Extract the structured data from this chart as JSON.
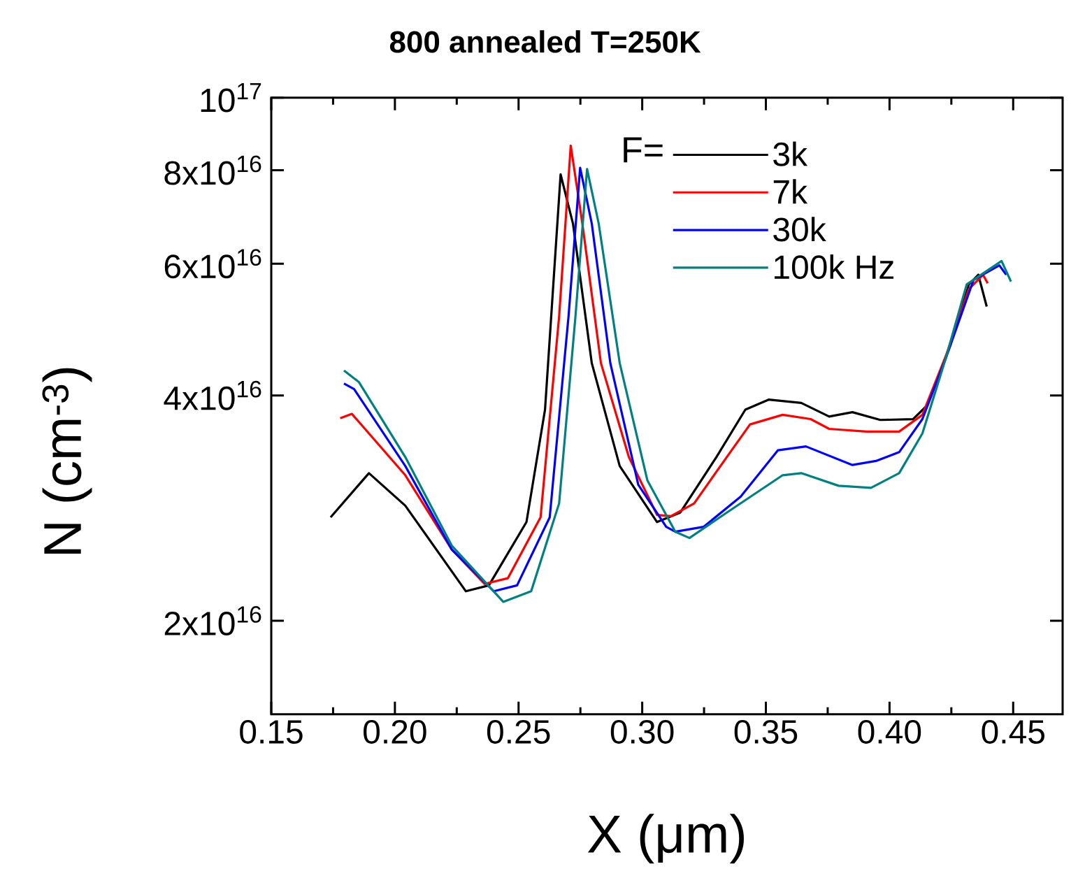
{
  "chart_data": {
    "type": "line",
    "title": "800 annealed  T=250K",
    "xlabel": "X (μm)",
    "ylabel": "N (cm$^{-3}$)",
    "legend_title": "F=",
    "legend": "top right",
    "log": "y",
    "xlim": [
      0.15,
      0.47
    ],
    "ylim": [
      1.5e+16,
      1e+17
    ],
    "xticks": [
      {
        "value": 0.15,
        "label": "0.15"
      },
      {
        "value": 0.2,
        "label": "0.20"
      },
      {
        "value": 0.25,
        "label": "0.25"
      },
      {
        "value": 0.3,
        "label": "0.30"
      },
      {
        "value": 0.35,
        "label": "0.35"
      },
      {
        "value": 0.4,
        "label": "0.40"
      },
      {
        "value": 0.45,
        "label": "0.45"
      }
    ],
    "yticks": [
      {
        "value": 2e+16,
        "label": "2x10$^{16}$"
      },
      {
        "value": 4e+16,
        "label": "4x10$^{16}$"
      },
      {
        "value": 6e+16,
        "label": "6x10$^{16}$"
      },
      {
        "value": 8e+16,
        "label": "8x10$^{16}$"
      },
      {
        "value": 1e+17,
        "label": "10$^{17}$"
      }
    ],
    "series": [
      {
        "name": "3k",
        "color": "#000000",
        "x": [
          0.174,
          0.1895,
          0.2042,
          0.2287,
          0.238,
          0.2532,
          0.2607,
          0.267,
          0.272,
          0.2796,
          0.2909,
          0.306,
          0.3154,
          0.33,
          0.3417,
          0.3511,
          0.3643,
          0.3756,
          0.385,
          0.3963,
          0.4095,
          0.4152,
          0.4246,
          0.4321,
          0.4359,
          0.4393
        ],
        "values": [
          2.75e+16,
          3.15e+16,
          2.85e+16,
          2.19e+16,
          2.23e+16,
          2.71e+16,
          3.83e+16,
          7.9e+16,
          6.79e+16,
          4.42e+16,
          3.22e+16,
          2.71e+16,
          2.79e+16,
          3.31e+16,
          3.83e+16,
          3.95e+16,
          3.91e+16,
          3.75e+16,
          3.8e+16,
          3.71e+16,
          3.72e+16,
          3.88e+16,
          4.67e+16,
          5.63e+16,
          5.8e+16,
          5.26e+16
        ]
      },
      {
        "name": "7k",
        "color": "#ff0000",
        "x": [
          0.1779,
          0.1826,
          0.2042,
          0.223,
          0.2363,
          0.2457,
          0.2589,
          0.2664,
          0.2711,
          0.2758,
          0.2833,
          0.2946,
          0.306,
          0.3116,
          0.321,
          0.3342,
          0.3436,
          0.3568,
          0.3681,
          0.3756,
          0.3907,
          0.4039,
          0.4133,
          0.4227,
          0.4321,
          0.4378,
          0.4397
        ],
        "values": [
          3.73e+16,
          3.78e+16,
          3.13e+16,
          2.49e+16,
          2.24e+16,
          2.28e+16,
          2.75e+16,
          5.1e+16,
          8.63e+16,
          6.79e+16,
          4.42e+16,
          3.31e+16,
          2.77e+16,
          2.76e+16,
          2.87e+16,
          3.31e+16,
          3.66e+16,
          3.77e+16,
          3.72e+16,
          3.61e+16,
          3.58e+16,
          3.58e+16,
          3.77e+16,
          4.51e+16,
          5.55e+16,
          5.8e+16,
          5.65e+16
        ]
      },
      {
        "name": "30k",
        "color": "#0000ff",
        "x": [
          0.1794,
          0.1835,
          0.2042,
          0.223,
          0.24,
          0.2494,
          0.2626,
          0.2702,
          0.2749,
          0.2796,
          0.2871,
          0.2984,
          0.3097,
          0.3134,
          0.3248,
          0.3398,
          0.3549,
          0.3662,
          0.385,
          0.3945,
          0.4039,
          0.4133,
          0.4227,
          0.434,
          0.4444,
          0.4472
        ],
        "values": [
          4.15e+16,
          4.08e+16,
          3.22e+16,
          2.49e+16,
          2.19e+16,
          2.23e+16,
          2.75e+16,
          5.1e+16,
          8.06e+16,
          6.79e+16,
          4.42e+16,
          3.04e+16,
          2.67e+16,
          2.63e+16,
          2.67e+16,
          2.93e+16,
          3.38e+16,
          3.42e+16,
          3.23e+16,
          3.27e+16,
          3.36e+16,
          3.72e+16,
          4.48e+16,
          5.71e+16,
          5.97e+16,
          5.8e+16
        ]
      },
      {
        "name": "100k Hz",
        "color": "#008080",
        "x": [
          0.1794,
          0.1854,
          0.2042,
          0.223,
          0.2438,
          0.2551,
          0.2664,
          0.273,
          0.2777,
          0.2824,
          0.2909,
          0.3021,
          0.3134,
          0.3191,
          0.3342,
          0.3568,
          0.3643,
          0.3794,
          0.3925,
          0.4039,
          0.4133,
          0.4227,
          0.4312,
          0.4453,
          0.4491
        ],
        "values": [
          4.32e+16,
          4.17e+16,
          3.31e+16,
          2.52e+16,
          2.12e+16,
          2.19e+16,
          2.87e+16,
          5.1e+16,
          8.03e+16,
          6.79e+16,
          4.42e+16,
          3.08e+16,
          2.63e+16,
          2.58e+16,
          2.79e+16,
          3.13e+16,
          3.15e+16,
          3.03e+16,
          3.01e+16,
          3.15e+16,
          3.56e+16,
          4.48e+16,
          5.63e+16,
          6.05e+16,
          5.68e+16
        ]
      }
    ]
  }
}
